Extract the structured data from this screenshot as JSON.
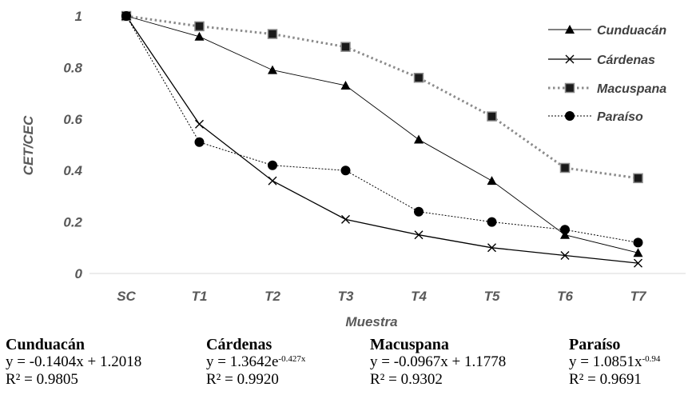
{
  "chart_data": {
    "type": "line",
    "categories": [
      "SC",
      "T1",
      "T2",
      "T3",
      "T4",
      "T5",
      "T6",
      "T7"
    ],
    "xlabel": "Muestra",
    "ylabel": "CET/CEC",
    "ylim": [
      0,
      1
    ],
    "yticks": [
      "0",
      "0.2",
      "0.4",
      "0.6",
      "0.8",
      "1"
    ],
    "grid": false,
    "legend_position": "top-right",
    "series": [
      {
        "name": "Cunduacán",
        "marker": "triangle",
        "line": "thin-solid",
        "color": "#000000",
        "values": [
          1.0,
          0.92,
          0.79,
          0.73,
          0.52,
          0.36,
          0.15,
          0.08
        ]
      },
      {
        "name": "Cárdenas",
        "marker": "x",
        "line": "solid",
        "color": "#000000",
        "values": [
          1.0,
          0.58,
          0.36,
          0.21,
          0.15,
          0.1,
          0.07,
          0.04
        ]
      },
      {
        "name": "Macuspana",
        "marker": "square",
        "line": "dotted-gray",
        "color": "#808080",
        "values": [
          1.0,
          0.96,
          0.93,
          0.88,
          0.76,
          0.61,
          0.41,
          0.37
        ]
      },
      {
        "name": "Paraíso",
        "marker": "circle",
        "line": "dotted",
        "color": "#000000",
        "values": [
          1.0,
          0.51,
          0.42,
          0.4,
          0.24,
          0.2,
          0.17,
          0.12
        ]
      }
    ]
  },
  "equations": [
    {
      "name": "Cunduacán",
      "eq_base": "y = -0.1404x + 1.2018",
      "eq_sup": "",
      "eq_tail": "",
      "r2": "R² = 0.9805"
    },
    {
      "name": "Cárdenas",
      "eq_base": "y =  1.3642e",
      "eq_sup": "-0.427x",
      "eq_tail": "",
      "r2": "R² = 0.9920"
    },
    {
      "name": "Macuspana",
      "eq_base": "y = -0.0967x + 1.1778",
      "eq_sup": "",
      "eq_tail": "",
      "r2": "R² = 0.9302"
    },
    {
      "name": "Paraíso",
      "eq_base": "y = 1.0851x",
      "eq_sup": "-0.94",
      "eq_tail": "",
      "r2": "R² = 0.9691"
    }
  ]
}
